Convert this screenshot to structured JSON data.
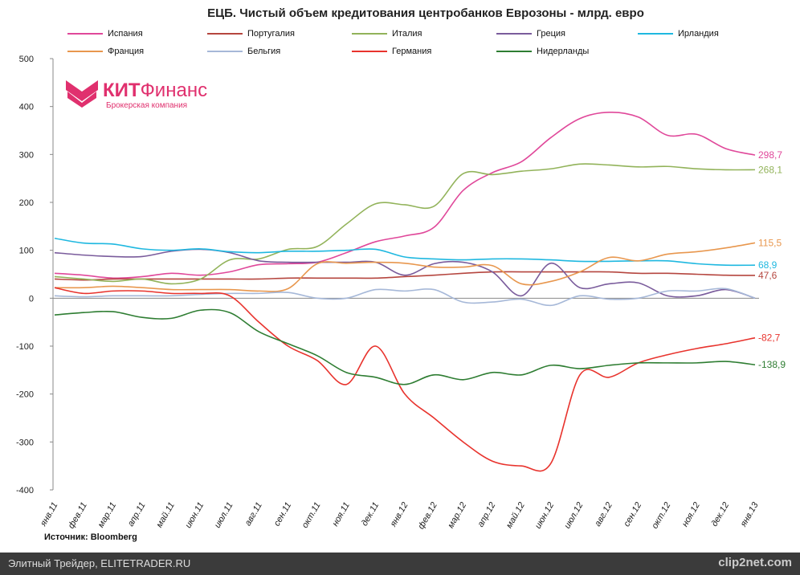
{
  "chart_data": {
    "type": "line",
    "title": "ЕЦБ. Чистый объем кредитования центробанков Еврозоны - млрд. евро",
    "categories": [
      "янв.11",
      "фев.11",
      "мар.11",
      "апр.11",
      "май.11",
      "июн.11",
      "июл.11",
      "авг.11",
      "сен.11",
      "окт.11",
      "ноя.11",
      "дек.11",
      "янв.12",
      "фев.12",
      "мар.12",
      "апр.12",
      "май.12",
      "июн.12",
      "июл.12",
      "авг.12",
      "сен.12",
      "окт.12",
      "ноя.12",
      "дек.12",
      "янв.13"
    ],
    "ylim": [
      -400,
      500
    ],
    "yticks": [
      500,
      400,
      300,
      200,
      100,
      0,
      -100,
      -200,
      -300,
      -400
    ],
    "legend": "top",
    "series": [
      {
        "name": "Испания",
        "color": "#e0489a",
        "end_label": "298,7",
        "values": [
          52,
          48,
          42,
          45,
          52,
          48,
          55,
          70,
          72,
          75,
          95,
          118,
          130,
          148,
          225,
          262,
          285,
          335,
          375,
          388,
          378,
          340,
          342,
          312,
          298.7
        ]
      },
      {
        "name": "Португалия",
        "color": "#b5463f",
        "end_label": "47,6",
        "values": [
          40,
          38,
          40,
          40,
          40,
          40,
          40,
          40,
          42,
          42,
          42,
          42,
          45,
          48,
          52,
          55,
          55,
          55,
          55,
          55,
          52,
          52,
          50,
          48,
          47.6
        ]
      },
      {
        "name": "Италия",
        "color": "#92b35a",
        "end_label": "268,1",
        "values": [
          45,
          40,
          35,
          40,
          30,
          40,
          80,
          82,
          102,
          108,
          155,
          197,
          195,
          192,
          260,
          258,
          265,
          270,
          280,
          278,
          274,
          275,
          270,
          268,
          268.1
        ]
      },
      {
        "name": "Греция",
        "color": "#7a5c9c",
        "values": [
          95,
          90,
          87,
          87,
          98,
          102,
          95,
          78,
          75,
          75,
          75,
          75,
          48,
          72,
          75,
          55,
          5,
          73,
          22,
          30,
          32,
          5,
          5,
          18,
          0
        ]
      },
      {
        "name": "Ирландия",
        "color": "#1fb8e0",
        "end_label": "68,9",
        "values": [
          125,
          115,
          113,
          103,
          100,
          103,
          97,
          95,
          98,
          98,
          100,
          102,
          86,
          82,
          80,
          82,
          82,
          80,
          77,
          77,
          78,
          78,
          72,
          69,
          68.9
        ]
      },
      {
        "name": "Франция",
        "color": "#e8974e",
        "end_label": "115,5",
        "values": [
          22,
          22,
          25,
          22,
          18,
          18,
          18,
          15,
          20,
          72,
          73,
          75,
          73,
          65,
          65,
          68,
          30,
          35,
          55,
          85,
          78,
          92,
          97,
          105,
          115.5
        ]
      },
      {
        "name": "Бельгия",
        "color": "#a6b8d8",
        "values": [
          5,
          3,
          5,
          5,
          5,
          8,
          10,
          10,
          12,
          0,
          0,
          18,
          15,
          18,
          -8,
          -8,
          -2,
          -15,
          5,
          -2,
          0,
          15,
          15,
          20,
          0
        ]
      },
      {
        "name": "Германия",
        "color": "#e8332d",
        "end_label": "-82,7",
        "values": [
          22,
          10,
          15,
          15,
          10,
          10,
          5,
          -50,
          -100,
          -130,
          -180,
          -100,
          -200,
          -250,
          -300,
          -340,
          -350,
          -345,
          -160,
          -165,
          -135,
          -118,
          -105,
          -95,
          -82.7
        ]
      },
      {
        "name": "Нидерланды",
        "color": "#2e7d32",
        "end_label": "-138,9",
        "values": [
          -35,
          -30,
          -28,
          -40,
          -42,
          -25,
          -30,
          -70,
          -95,
          -120,
          -155,
          -165,
          -180,
          -160,
          -170,
          -155,
          -160,
          -140,
          -147,
          -140,
          -135,
          -135,
          -135,
          -132,
          -138.9
        ]
      }
    ]
  },
  "logo": {
    "brand_bold": "КИТ",
    "brand_light": "Финанс",
    "tagline": "Брокерская компания"
  },
  "source": "Источник: Bloomberg",
  "footer": {
    "site": "Элитный Трейдер, ELITETRADER.RU",
    "watermark": "clip2net.com"
  }
}
